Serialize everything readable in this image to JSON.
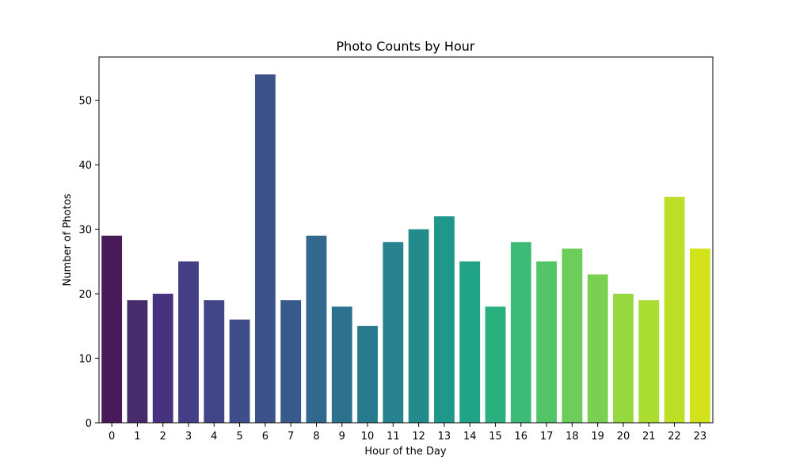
{
  "chart_data": {
    "type": "bar",
    "title": "Photo Counts by Hour",
    "xlabel": "Hour of the Day",
    "ylabel": "Number of Photos",
    "categories": [
      "0",
      "1",
      "2",
      "3",
      "4",
      "5",
      "6",
      "7",
      "8",
      "9",
      "10",
      "11",
      "12",
      "13",
      "14",
      "15",
      "16",
      "17",
      "18",
      "19",
      "20",
      "21",
      "22",
      "23"
    ],
    "values": [
      29,
      19,
      20,
      25,
      19,
      16,
      54,
      19,
      29,
      18,
      15,
      28,
      30,
      32,
      25,
      18,
      28,
      25,
      27,
      23,
      20,
      19,
      35,
      27
    ],
    "ylim": [
      0,
      56.7
    ],
    "yticks": [
      0,
      10,
      20,
      30,
      40,
      50
    ],
    "grid": false,
    "legend": false,
    "colormap": "viridis",
    "colors": [
      "#481a59",
      "#472b6a",
      "#46327e",
      "#433e85",
      "#414487",
      "#3d4e8a",
      "#3b528b",
      "#38598c",
      "#31688e",
      "#2c728e",
      "#29798e",
      "#26828e",
      "#228c8d",
      "#1f978b",
      "#20a386",
      "#2ab07f",
      "#3bbb75",
      "#52c569",
      "#6ccd5a",
      "#7ad151",
      "#97d83f",
      "#aadc32",
      "#bddf26",
      "#d2e21b"
    ]
  }
}
